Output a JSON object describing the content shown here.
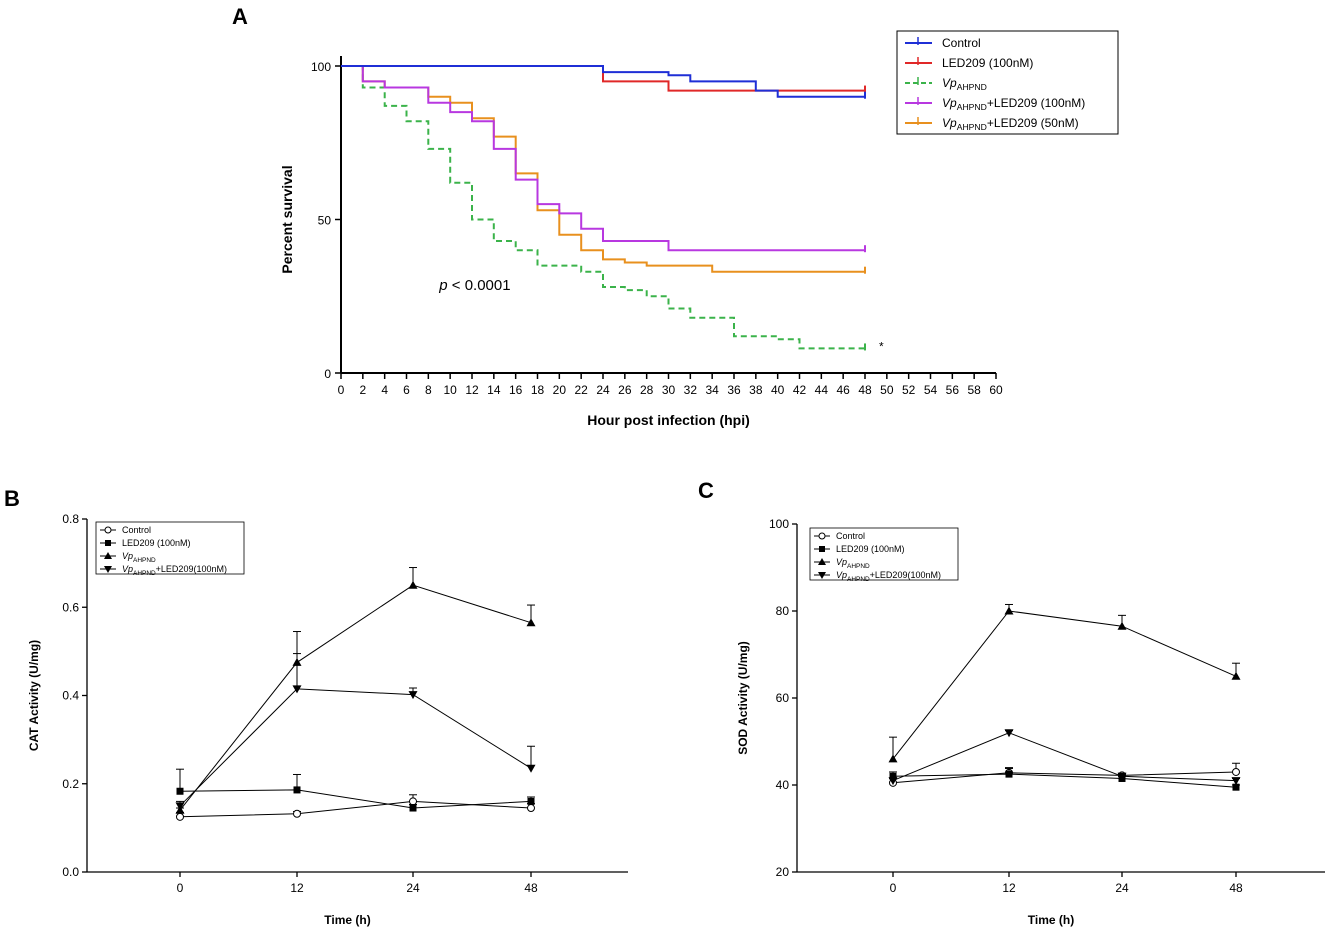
{
  "chart_data": [
    {
      "panel": "A",
      "type": "line",
      "title": "",
      "xlabel": "Hour post infection (hpi)",
      "ylabel": "Percent survival",
      "xlim": [
        0,
        60
      ],
      "ylim": [
        0,
        100
      ],
      "xticks": [
        0,
        2,
        4,
        6,
        8,
        10,
        12,
        14,
        16,
        18,
        20,
        22,
        24,
        26,
        28,
        30,
        32,
        34,
        36,
        38,
        40,
        42,
        44,
        46,
        48,
        50,
        52,
        54,
        56,
        58,
        60
      ],
      "yticks": [
        0,
        50,
        100
      ],
      "grid": false,
      "legend_position": "top-right",
      "annotation": {
        "p_label": "p",
        "p_text": " < 0.0001",
        "x": 9,
        "y": 27
      },
      "asterisk": {
        "text": "*",
        "x": 49.5,
        "y": 9
      },
      "series": [
        {
          "name": "Control",
          "color": "#1f2fd6",
          "dashed": false,
          "width": 2,
          "points": [
            [
              0,
              100
            ],
            [
              24,
              100
            ],
            [
              24,
              98
            ],
            [
              30,
              98
            ],
            [
              30,
              97
            ],
            [
              32,
              97
            ],
            [
              32,
              95
            ],
            [
              38,
              95
            ],
            [
              38,
              92
            ],
            [
              40,
              92
            ],
            [
              40,
              90
            ],
            [
              48,
              90
            ]
          ]
        },
        {
          "name": "LED209 (100nM)",
          "color": "#e02828",
          "dashed": false,
          "width": 2,
          "points": [
            [
              0,
              100
            ],
            [
              24,
              100
            ],
            [
              24,
              95
            ],
            [
              30,
              95
            ],
            [
              30,
              92
            ],
            [
              48,
              92
            ]
          ]
        },
        {
          "name": "VpAHPND",
          "color": "#3bb34a",
          "dashed": true,
          "width": 2,
          "points": [
            [
              0,
              100
            ],
            [
              2,
              100
            ],
            [
              2,
              93
            ],
            [
              4,
              93
            ],
            [
              4,
              87
            ],
            [
              6,
              87
            ],
            [
              6,
              82
            ],
            [
              8,
              82
            ],
            [
              8,
              73
            ],
            [
              10,
              73
            ],
            [
              10,
              62
            ],
            [
              12,
              62
            ],
            [
              12,
              50
            ],
            [
              14,
              50
            ],
            [
              14,
              43
            ],
            [
              16,
              43
            ],
            [
              16,
              40
            ],
            [
              18,
              40
            ],
            [
              18,
              35
            ],
            [
              22,
              35
            ],
            [
              22,
              33
            ],
            [
              24,
              33
            ],
            [
              24,
              28
            ],
            [
              26,
              28
            ],
            [
              26,
              27
            ],
            [
              28,
              27
            ],
            [
              28,
              25
            ],
            [
              30,
              25
            ],
            [
              30,
              21
            ],
            [
              32,
              21
            ],
            [
              32,
              18
            ],
            [
              36,
              18
            ],
            [
              36,
              12
            ],
            [
              40,
              12
            ],
            [
              40,
              11
            ],
            [
              42,
              11
            ],
            [
              42,
              8
            ],
            [
              48,
              8
            ]
          ]
        },
        {
          "name": "VpAHPND+LED209 (100nM)",
          "color": "#b838e0",
          "dashed": false,
          "width": 2,
          "points": [
            [
              0,
              100
            ],
            [
              2,
              100
            ],
            [
              2,
              95
            ],
            [
              4,
              95
            ],
            [
              4,
              93
            ],
            [
              8,
              93
            ],
            [
              8,
              88
            ],
            [
              10,
              88
            ],
            [
              10,
              85
            ],
            [
              12,
              85
            ],
            [
              12,
              82
            ],
            [
              14,
              82
            ],
            [
              14,
              73
            ],
            [
              16,
              73
            ],
            [
              16,
              63
            ],
            [
              18,
              63
            ],
            [
              18,
              55
            ],
            [
              20,
              55
            ],
            [
              20,
              52
            ],
            [
              22,
              52
            ],
            [
              22,
              47
            ],
            [
              24,
              47
            ],
            [
              24,
              43
            ],
            [
              30,
              43
            ],
            [
              30,
              40
            ],
            [
              48,
              40
            ]
          ]
        },
        {
          "name": "VpAHPND+LED209 (50nM)",
          "color": "#e8901e",
          "dashed": false,
          "width": 2,
          "points": [
            [
              0,
              100
            ],
            [
              2,
              100
            ],
            [
              2,
              95
            ],
            [
              4,
              95
            ],
            [
              4,
              93
            ],
            [
              8,
              93
            ],
            [
              8,
              90
            ],
            [
              10,
              90
            ],
            [
              10,
              88
            ],
            [
              12,
              88
            ],
            [
              12,
              83
            ],
            [
              14,
              83
            ],
            [
              14,
              77
            ],
            [
              16,
              77
            ],
            [
              16,
              65
            ],
            [
              18,
              65
            ],
            [
              18,
              53
            ],
            [
              20,
              53
            ],
            [
              20,
              45
            ],
            [
              22,
              45
            ],
            [
              22,
              40
            ],
            [
              24,
              40
            ],
            [
              24,
              37
            ],
            [
              26,
              37
            ],
            [
              26,
              36
            ],
            [
              28,
              36
            ],
            [
              28,
              35
            ],
            [
              34,
              35
            ],
            [
              34,
              33
            ],
            [
              48,
              33
            ]
          ]
        }
      ]
    },
    {
      "panel": "B",
      "type": "line",
      "title": "",
      "xlabel": "Time (h)",
      "ylabel": "CAT Activity (U/mg)",
      "categories": [
        "0",
        "12",
        "24",
        "48"
      ],
      "ylim": [
        0,
        0.8
      ],
      "yticks": [
        "0.0",
        "0.2",
        "0.4",
        "0.6",
        "0.8"
      ],
      "grid": false,
      "legend_position": "top-left",
      "series": [
        {
          "name": "Control",
          "marker": "circle-open",
          "values": [
            0.125,
            0.132,
            0.16,
            0.145
          ],
          "errors": [
            0.01,
            0.005,
            0.015,
            0.01
          ]
        },
        {
          "name": "LED209 (100nM)",
          "marker": "square",
          "values": [
            0.183,
            0.186,
            0.145,
            0.16
          ],
          "errors": [
            0.05,
            0.035,
            0.008,
            0.01
          ]
        },
        {
          "name": "VpAHPND",
          "marker": "triangle-up",
          "values": [
            0.14,
            0.475,
            0.65,
            0.565
          ],
          "errors": [
            0.005,
            0.07,
            0.04,
            0.04
          ]
        },
        {
          "name": "VpAHPND+LED209(100nM)",
          "marker": "triangle-down",
          "values": [
            0.15,
            0.415,
            0.402,
            0.235
          ],
          "errors": [
            0.01,
            0.08,
            0.015,
            0.05
          ]
        }
      ]
    },
    {
      "panel": "C",
      "type": "line",
      "title": "",
      "xlabel": "Time (h)",
      "ylabel": "SOD Activity (U/mg)",
      "categories": [
        "0",
        "12",
        "24",
        "48"
      ],
      "ylim": [
        20,
        100
      ],
      "yticks": [
        "20",
        "40",
        "60",
        "80",
        "100"
      ],
      "grid": false,
      "legend_position": "top-left",
      "series": [
        {
          "name": "Control",
          "marker": "circle-open",
          "values": [
            40.5,
            42.8,
            42.2,
            43.0
          ],
          "errors": [
            1.0,
            1.0,
            0.5,
            2.0
          ]
        },
        {
          "name": "LED209 (100nM)",
          "marker": "square",
          "values": [
            42.0,
            42.5,
            41.5,
            39.5
          ],
          "errors": [
            1.0,
            1.5,
            0.5,
            0.5
          ]
        },
        {
          "name": "VpAHPND",
          "marker": "triangle-up",
          "values": [
            46.0,
            80.0,
            76.5,
            65.0
          ],
          "errors": [
            5.0,
            1.5,
            2.5,
            3.0
          ]
        },
        {
          "name": "VpAHPND+LED209(100nM)",
          "marker": "triangle-down",
          "values": [
            41.0,
            52.0,
            42.0,
            41.0
          ],
          "errors": [
            0.5,
            0.5,
            0.5,
            0.5
          ]
        }
      ]
    }
  ]
}
